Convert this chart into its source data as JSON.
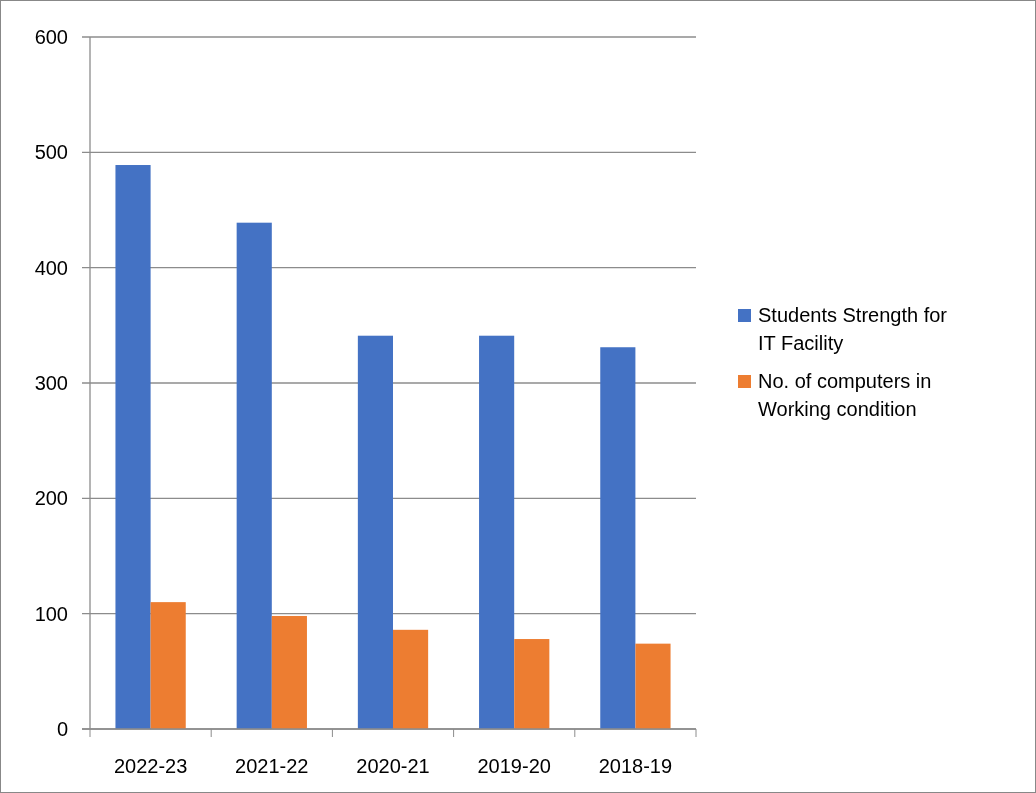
{
  "chart_data": {
    "type": "bar",
    "categories": [
      "2022-23",
      "2021-22",
      "2020-21",
      "2019-20",
      "2018-19"
    ],
    "series": [
      {
        "name": "Students Strength for IT Facility",
        "color": "#4472c4",
        "values": [
          489,
          439,
          341,
          341,
          331
        ]
      },
      {
        "name": "No. of computers in Working condition",
        "color": "#ed7d31",
        "values": [
          110,
          98,
          86,
          78,
          74
        ]
      }
    ],
    "ylim": [
      0,
      600
    ],
    "yticks": [
      0,
      100,
      200,
      300,
      400,
      500,
      600
    ],
    "grid": "y",
    "legend": "right"
  }
}
